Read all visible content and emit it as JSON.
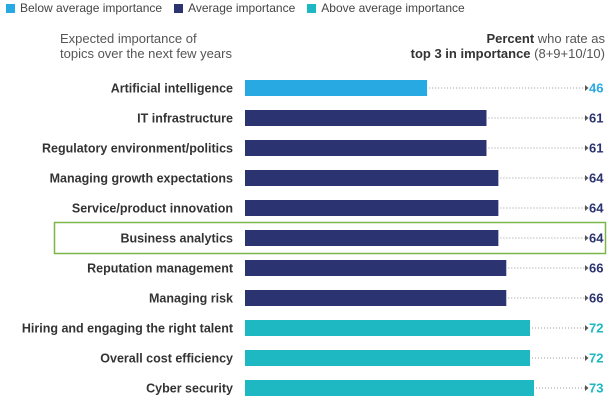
{
  "legend": [
    {
      "label": "Below average importance",
      "color": "#29a9e1"
    },
    {
      "label": "Average importance",
      "color": "#2b3470"
    },
    {
      "label": "Above average importance",
      "color": "#1db8c1"
    }
  ],
  "heading_left": {
    "line1": "Expected importance of",
    "line2": "topics over the next few years"
  },
  "heading_right": {
    "bold1": "Percent",
    "rest1": " who rate as",
    "bold2": "top 3 in importance",
    "rest2": " (8+9+10/10)"
  },
  "highlight_color": "#7ab648",
  "chart_data": {
    "type": "bar",
    "orientation": "horizontal",
    "categories": [
      "Artificial intelligence",
      "IT infrastructure",
      "Regulatory environment/politics",
      "Managing growth expectations",
      "Service/product innovation",
      "Business analytics",
      "Reputation management",
      "Managing risk",
      "Hiring and engaging the right talent",
      "Overall cost efficiency",
      "Cyber security"
    ],
    "values": [
      46,
      61,
      61,
      64,
      64,
      64,
      66,
      66,
      72,
      72,
      73
    ],
    "groups": [
      "below",
      "average",
      "average",
      "average",
      "average",
      "average",
      "average",
      "average",
      "above",
      "above",
      "above"
    ],
    "group_colors": {
      "below": "#29a9e1",
      "average": "#2b3470",
      "above": "#1db8c1"
    },
    "value_label_colors": {
      "below": "#29a9e1",
      "average": "#2b3470",
      "above": "#1db8c1"
    },
    "highlighted": "Business analytics",
    "xlim": [
      0,
      100
    ],
    "grid": false,
    "legend_position": "top-left"
  }
}
